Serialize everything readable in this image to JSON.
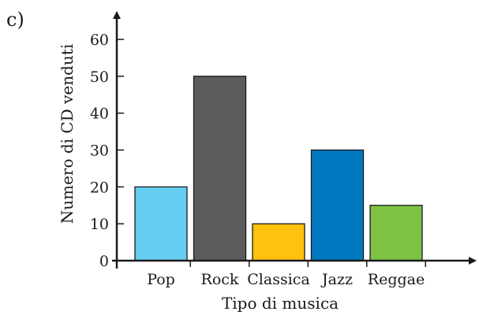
{
  "panel_label": "c)",
  "chart_data": {
    "type": "bar",
    "categories": [
      "Pop",
      "Rock",
      "Classica",
      "Jazz",
      "Reggae"
    ],
    "values": [
      20,
      50,
      10,
      30,
      15
    ],
    "bar_colors": [
      "#66ccf0",
      "#5c5c5f",
      "#ffc20e",
      "#0079c1",
      "#7dc242"
    ],
    "xlabel": "Tipo di musica",
    "ylabel": "Numero di CD venduti",
    "ylim": [
      0,
      60
    ],
    "yticks": [
      0,
      10,
      20,
      30,
      40,
      50,
      60
    ],
    "grid": false,
    "legend": "none"
  }
}
